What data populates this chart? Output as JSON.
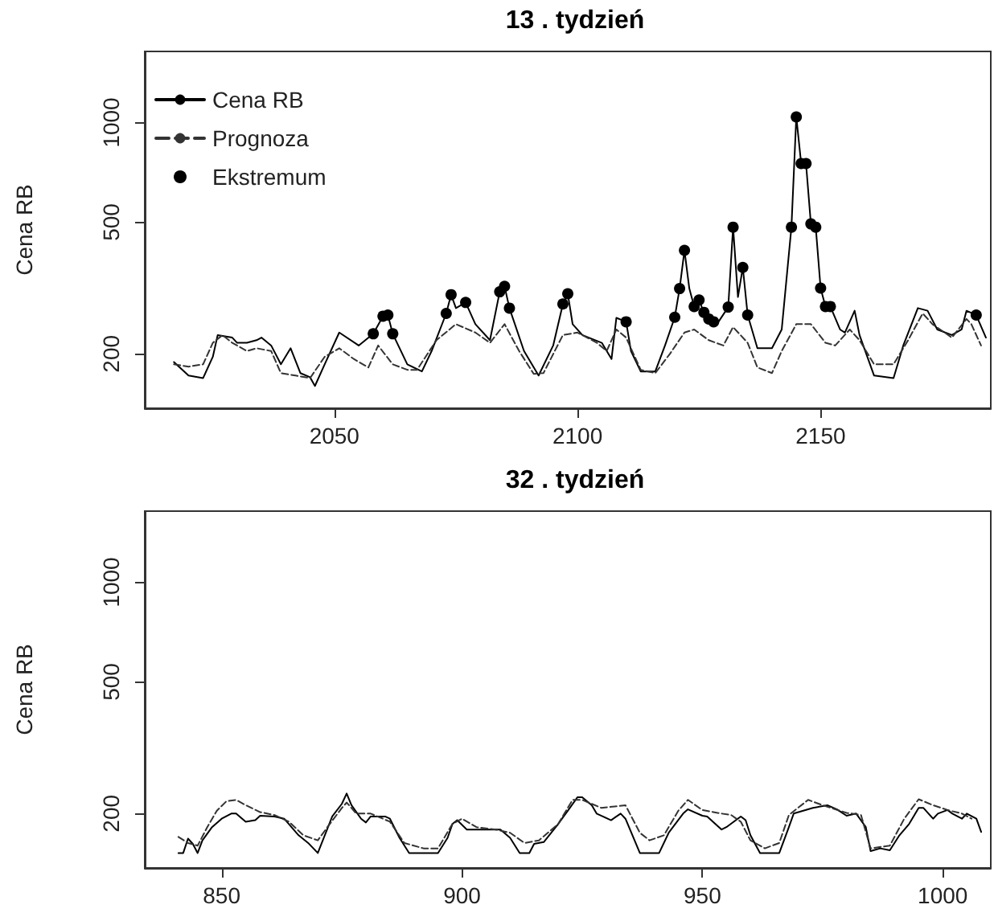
{
  "chart_data": [
    {
      "type": "line",
      "title": "13 . tydzień",
      "ylabel": "Cena RB",
      "log": "y",
      "xlim": [
        2011,
        2185
      ],
      "xticks": [
        2050,
        2100,
        2150
      ],
      "ylim": [
        137,
        1640
      ],
      "yticks": [
        200,
        500,
        1000
      ],
      "grid": false,
      "legend": "top left",
      "marker": "none",
      "series": [
        {
          "name": "Cena RB",
          "color": "#000000",
          "line_style": "solid",
          "x": [
            2017,
            2020,
            2023,
            2025,
            2026,
            2029,
            2030,
            2032,
            2034,
            2035,
            2037,
            2039,
            2041,
            2043,
            2045,
            2046,
            2048,
            2051,
            2055,
            2058,
            2060,
            2061,
            2062,
            2065,
            2068,
            2070,
            2073,
            2074,
            2075,
            2077,
            2079,
            2082,
            2084,
            2085,
            2086,
            2089,
            2092,
            2095,
            2097,
            2098,
            2099,
            2101,
            2105,
            2107,
            2108,
            2110,
            2111,
            2113,
            2116,
            2118,
            2120,
            2121,
            2122,
            2123,
            2124,
            2125,
            2126,
            2127,
            2128,
            2129,
            2131,
            2132,
            2133,
            2134,
            2135,
            2137,
            2140,
            2142,
            2144,
            2145,
            2146,
            2147,
            2148,
            2149,
            2150,
            2151,
            2152,
            2154,
            2155,
            2157,
            2158,
            2161,
            2165,
            2167,
            2170,
            2172,
            2174,
            2177,
            2179,
            2180,
            2182,
            2184
          ],
          "values": [
            189,
            172,
            169,
            196,
            228,
            224,
            216,
            216,
            220,
            224,
            212,
            186,
            208,
            175,
            170,
            160,
            186,
            232,
            212,
            230,
            260,
            262,
            230,
            186,
            177,
            204,
            265,
            302,
            275,
            286,
            246,
            220,
            308,
            320,
            275,
            204,
            172,
            212,
            283,
            304,
            246,
            228,
            216,
            193,
            257,
            250,
            204,
            177,
            177,
            212,
            258,
            315,
            411,
            315,
            278,
            291,
            267,
            255,
            250,
            250,
            277,
            483,
            297,
            365,
            262,
            208,
            208,
            237,
            483,
            1040,
            752,
            752,
            494,
            483,
            316,
            278,
            278,
            237,
            232,
            270,
            228,
            172,
            169,
            212,
            275,
            270,
            237,
            228,
            237,
            270,
            262,
            224
          ]
        },
        {
          "name": "Prognoza",
          "color": "#333333",
          "line_style": "dashed",
          "x": [
            2017,
            2020,
            2023,
            2025,
            2027,
            2029,
            2032,
            2034,
            2037,
            2039,
            2042,
            2045,
            2048,
            2051,
            2054,
            2057,
            2059,
            2062,
            2065,
            2067,
            2071,
            2075,
            2079,
            2082,
            2085,
            2088,
            2091,
            2093,
            2097,
            2100,
            2104,
            2106,
            2108,
            2110,
            2113,
            2116,
            2119,
            2122,
            2124,
            2127,
            2130,
            2132,
            2135,
            2137,
            2140,
            2142,
            2145,
            2148,
            2151,
            2153,
            2156,
            2158,
            2161,
            2165,
            2168,
            2171,
            2173,
            2177,
            2180,
            2181,
            2183
          ],
          "values": [
            186,
            183,
            186,
            216,
            228,
            216,
            204,
            208,
            204,
            175,
            172,
            169,
            196,
            208,
            193,
            182,
            212,
            186,
            179,
            179,
            220,
            246,
            232,
            216,
            246,
            204,
            174,
            175,
            228,
            232,
            216,
            204,
            237,
            224,
            179,
            175,
            200,
            232,
            237,
            220,
            212,
            241,
            216,
            182,
            175,
            204,
            246,
            246,
            216,
            212,
            237,
            220,
            186,
            186,
            220,
            265,
            246,
            224,
            255,
            246,
            212
          ]
        },
        {
          "name": "Ekstremum",
          "type": "scatter",
          "marker": "circle",
          "color": "#000000",
          "x": [
            2058,
            2060,
            2061,
            2062,
            2073,
            2074,
            2077,
            2084,
            2085,
            2086,
            2097,
            2098,
            2110,
            2120,
            2121,
            2122,
            2124,
            2125,
            2126,
            2127,
            2128,
            2131,
            2132,
            2134,
            2135,
            2144,
            2145,
            2146,
            2147,
            2148,
            2149,
            2150,
            2151,
            2152,
            2182
          ],
          "values": [
            230,
            260,
            262,
            230,
            265,
            302,
            286,
            308,
            320,
            275,
            283,
            304,
            250,
            258,
            315,
            411,
            278,
            291,
            267,
            255,
            250,
            277,
            483,
            365,
            262,
            483,
            1040,
            752,
            752,
            494,
            483,
            316,
            278,
            278,
            262
          ]
        }
      ]
    },
    {
      "type": "line",
      "title": "32 . tydzień",
      "ylabel": "Cena RB",
      "log": "y",
      "xlim": [
        834,
        1010
      ],
      "xticks": [
        850,
        900,
        950,
        1000
      ],
      "ylim": [
        137,
        1640
      ],
      "yticks": [
        200,
        500,
        1000
      ],
      "grid": false,
      "legend": false,
      "marker": "none",
      "series": [
        {
          "color": "#000000",
          "line_style": "solid",
          "x": [
            841,
            842,
            843,
            844,
            845,
            846,
            848,
            850,
            852,
            853,
            855,
            857,
            858,
            861,
            863,
            866,
            868,
            870,
            873,
            875,
            876,
            877,
            879,
            880,
            881,
            884,
            885,
            887,
            889,
            895,
            897,
            898,
            899,
            901,
            908,
            910,
            912,
            914,
            915,
            917,
            920,
            922,
            924,
            925,
            927,
            928,
            931,
            933,
            934,
            937,
            941,
            943,
            946,
            947,
            950,
            951,
            954,
            955,
            958,
            959,
            960,
            962,
            966,
            968,
            969,
            973,
            976,
            978,
            980,
            982,
            984,
            985,
            987,
            989,
            991,
            993,
            995,
            996,
            998,
            999,
            1001,
            1002,
            1004,
            1005,
            1007,
            1008
          ],
          "values": [
            152,
            152,
            168,
            162,
            152,
            166,
            182,
            193,
            200,
            200,
            189,
            191,
            197,
            196,
            193,
            172,
            163,
            152,
            196,
            214,
            230,
            212,
            193,
            188,
            196,
            196,
            193,
            169,
            152,
            152,
            169,
            186,
            191,
            179,
            179,
            169,
            152,
            152,
            162,
            164,
            186,
            204,
            224,
            224,
            212,
            200,
            191,
            200,
            193,
            152,
            152,
            175,
            200,
            206,
            197,
            196,
            179,
            182,
            196,
            191,
            172,
            152,
            152,
            182,
            200,
            208,
            212,
            206,
            197,
            200,
            182,
            154,
            157,
            155,
            172,
            186,
            208,
            208,
            193,
            200,
            205,
            200,
            193,
            200,
            193,
            176
          ]
        },
        {
          "color": "#333333",
          "line_style": "dashed",
          "x": [
            841,
            843,
            845,
            847,
            849,
            851,
            853,
            855,
            858,
            861,
            864,
            867,
            870,
            872,
            875,
            876,
            878,
            881,
            885,
            888,
            892,
            895,
            898,
            900,
            903,
            907,
            910,
            913,
            916,
            920,
            923,
            925,
            929,
            934,
            937,
            939,
            942,
            945,
            947,
            950,
            954,
            956,
            958,
            960,
            963,
            966,
            968,
            972,
            975,
            980,
            983,
            985,
            989,
            992,
            995,
            998,
            1001,
            1004,
            1006
          ],
          "values": [
            170,
            163,
            160,
            182,
            204,
            218,
            220,
            212,
            202,
            198,
            189,
            172,
            166,
            182,
            208,
            216,
            200,
            200,
            189,
            163,
            157,
            157,
            186,
            193,
            182,
            179,
            175,
            163,
            166,
            186,
            220,
            220,
            208,
            212,
            175,
            166,
            172,
            204,
            220,
            205,
            200,
            198,
            189,
            166,
            157,
            163,
            198,
            220,
            212,
            201,
            198,
            157,
            160,
            193,
            221,
            212,
            205,
            200,
            193
          ]
        }
      ]
    }
  ]
}
